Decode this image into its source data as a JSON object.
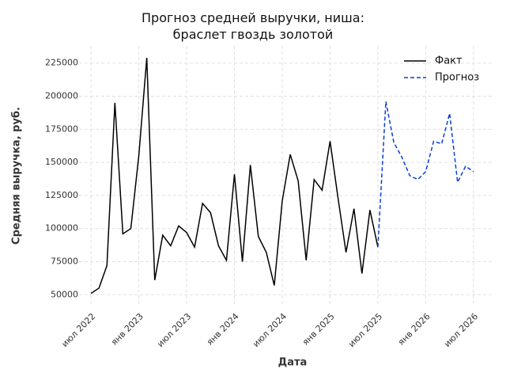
{
  "chart_data": {
    "type": "line",
    "title": "Прогноз средней выручки, ниша:\nбраслет гвоздь золотой",
    "x_label": "Дата",
    "y_label": "Средняя выручка, руб.",
    "x": [
      "2022-07",
      "2022-08",
      "2022-09",
      "2022-10",
      "2022-11",
      "2022-12",
      "2023-01",
      "2023-02",
      "2023-03",
      "2023-04",
      "2023-05",
      "2023-06",
      "2023-07",
      "2023-08",
      "2023-09",
      "2023-10",
      "2023-11",
      "2023-12",
      "2024-01",
      "2024-02",
      "2024-03",
      "2024-04",
      "2024-05",
      "2024-06",
      "2024-07",
      "2024-08",
      "2024-09",
      "2024-10",
      "2024-11",
      "2024-12",
      "2025-01",
      "2025-02",
      "2025-03",
      "2025-04",
      "2025-05",
      "2025-06",
      "2025-07",
      "2025-08",
      "2025-09",
      "2025-10",
      "2025-11",
      "2025-12",
      "2026-01",
      "2026-02",
      "2026-03",
      "2026-04",
      "2026-05",
      "2026-06",
      "2026-07"
    ],
    "series": [
      {
        "name": "Факт",
        "color": "#000000",
        "dash": false,
        "values": [
          51000,
          55000,
          72000,
          195000,
          96000,
          100000,
          155000,
          229000,
          61000,
          95000,
          87000,
          102000,
          97000,
          86000,
          119000,
          112000,
          87000,
          76000,
          141000,
          75000,
          148000,
          94000,
          82000,
          57000,
          121000,
          156000,
          136000,
          76000,
          137000,
          129000,
          166000,
          123000,
          82000,
          115000,
          66000,
          114000,
          86000,
          null,
          null,
          null,
          null,
          null,
          null,
          null,
          null,
          null,
          null,
          null,
          null
        ]
      },
      {
        "name": "Прогноз",
        "color": "#0a3ed6",
        "dash": true,
        "values": [
          null,
          null,
          null,
          null,
          null,
          null,
          null,
          null,
          null,
          null,
          null,
          null,
          null,
          null,
          null,
          null,
          null,
          null,
          null,
          null,
          null,
          null,
          null,
          null,
          null,
          null,
          null,
          null,
          null,
          null,
          null,
          null,
          null,
          null,
          null,
          null,
          86000,
          196000,
          165000,
          154000,
          140000,
          137000,
          143000,
          166000,
          164000,
          187000,
          135000,
          147000,
          143000
        ]
      }
    ],
    "xlim": [
      "2022-06",
      "2026-08"
    ],
    "xticks": [
      {
        "value": "2022-07",
        "label": "июл 2022"
      },
      {
        "value": "2023-01",
        "label": "янв 2023"
      },
      {
        "value": "2023-07",
        "label": "июл 2023"
      },
      {
        "value": "2024-01",
        "label": "янв 2024"
      },
      {
        "value": "2024-07",
        "label": "июл 2024"
      },
      {
        "value": "2025-01",
        "label": "янв 2025"
      },
      {
        "value": "2025-07",
        "label": "июл 2025"
      },
      {
        "value": "2026-01",
        "label": "янв 2026"
      },
      {
        "value": "2026-07",
        "label": "июл 2026"
      }
    ],
    "ylim": [
      43000,
      238000
    ],
    "yticks": [
      50000,
      75000,
      100000,
      125000,
      150000,
      175000,
      200000,
      225000
    ],
    "grid": true,
    "legend": "upper right"
  }
}
